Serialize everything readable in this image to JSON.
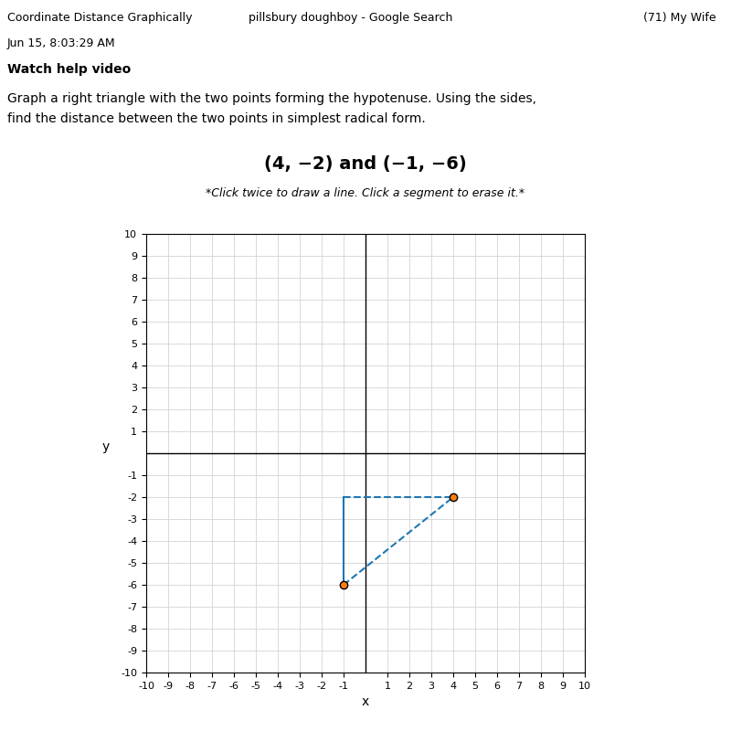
{
  "chart_data": {
    "type": "scatter",
    "title": "(4, −2) and (−1, −6)",
    "subtitle": "*Click twice to draw a line. Click a segment to erase it.*",
    "annotations": [
      "Coordinate Distance Graphically",
      "Jun 15, 8:03:29 AM",
      "pillsbury doughboy - Google Search",
      "(71) My Wife",
      "Watch help video",
      "Graph a right triangle with the two points forming the hypotenuse. Using the sides,",
      "find the distance between the two points in simplest radical form."
    ],
    "x_label": "x",
    "y_label": "y",
    "xlim": [
      -10,
      10
    ],
    "ylim": [
      -10,
      10
    ],
    "xticks": [
      -10,
      -9,
      -8,
      -7,
      -6,
      -5,
      -4,
      -3,
      -2,
      -1,
      1,
      2,
      3,
      4,
      5,
      6,
      7,
      8,
      9,
      10
    ],
    "yticks": [
      -10,
      -9,
      -8,
      -7,
      -6,
      -5,
      -4,
      -3,
      -2,
      -1,
      1,
      2,
      3,
      4,
      5,
      6,
      7,
      8,
      9,
      10
    ],
    "grid": true,
    "series": [
      {
        "type": "line",
        "line_style": "dashed",
        "x": [
          -1,
          4
        ],
        "values": [
          -6,
          -2
        ]
      },
      {
        "type": "line",
        "line_style": "dashed",
        "x": [
          -1,
          4
        ],
        "values": [
          -2,
          -2
        ]
      },
      {
        "type": "line",
        "line_style": "solid",
        "x": [
          -1,
          -1
        ],
        "values": [
          -6,
          -2
        ]
      },
      {
        "type": "scatter",
        "x": [
          4,
          -1
        ],
        "values": [
          -2,
          -6
        ]
      }
    ]
  }
}
